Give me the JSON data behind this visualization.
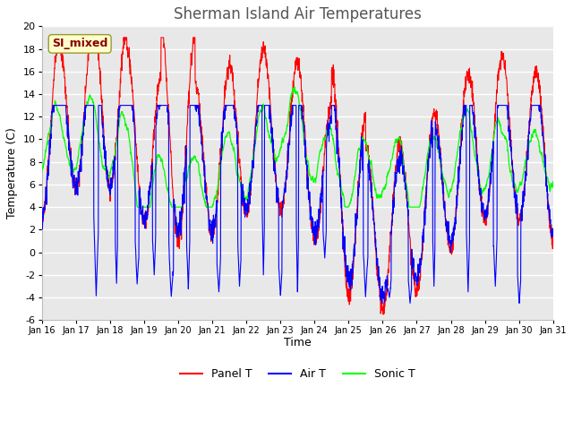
{
  "title": "Sherman Island Air Temperatures",
  "xlabel": "Time",
  "ylabel": "Temperature (C)",
  "ylim": [
    -6,
    20
  ],
  "yticks": [
    -6,
    -4,
    -2,
    0,
    2,
    4,
    6,
    8,
    10,
    12,
    14,
    16,
    18,
    20
  ],
  "xtick_labels": [
    "Jan 16",
    "Jan 17",
    "Jan 18",
    "Jan 19",
    "Jan 20",
    "Jan 21",
    "Jan 22",
    "Jan 23",
    "Jan 24",
    "Jan 25",
    "Jan 26",
    "Jan 27",
    "Jan 28",
    "Jan 29",
    "Jan 30",
    "Jan 31"
  ],
  "legend_labels": [
    "Panel T",
    "Air T",
    "Sonic T"
  ],
  "line_colors": [
    "red",
    "blue",
    "lime"
  ],
  "annotation_text": "SI_mixed",
  "annotation_color": "#8B0000",
  "annotation_bg": "#ffffcc",
  "plot_bg": "#e8e8e8",
  "title_color": "#555555",
  "title_fontsize": 12,
  "label_fontsize": 9,
  "tick_fontsize": 8
}
